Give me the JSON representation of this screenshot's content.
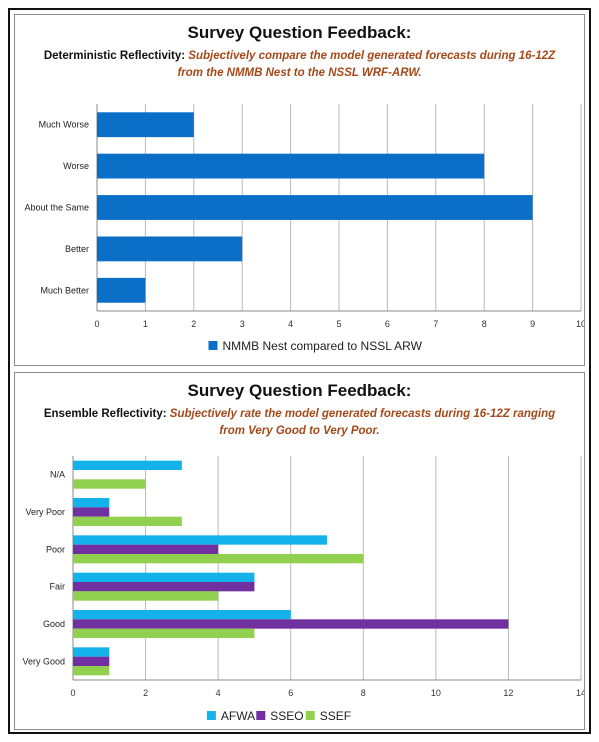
{
  "chart_data": [
    {
      "type": "bar",
      "orientation": "horizontal",
      "title": "Survey Question Feedback:",
      "subtitle_label": "Deterministic Reflectivity:",
      "subtitle_desc_line1": "Subjectively compare the model generated forecasts during 16-12Z",
      "subtitle_desc_line2": "from the NMMB Nest to the NSSL WRF-ARW.",
      "categories": [
        "Much Worse",
        "Worse",
        "About the Same",
        "Better",
        "Much Better"
      ],
      "series": [
        {
          "name": "NMMB Nest compared to NSSL ARW",
          "values": [
            2,
            8,
            9,
            3,
            1
          ],
          "color": "#0b6fc8"
        }
      ],
      "xlim": [
        0,
        10
      ],
      "xticks": [
        0,
        1,
        2,
        3,
        4,
        5,
        6,
        7,
        8,
        9,
        10
      ],
      "grid": true,
      "legend_position": "bottom"
    },
    {
      "type": "bar",
      "orientation": "horizontal",
      "title": "Survey Question Feedback:",
      "subtitle_label": "Ensemble Reflectivity:",
      "subtitle_desc_line1": "Subjectively rate the model generated forecasts during 16-12Z ranging",
      "subtitle_desc_line2": "from Very Good to Very Poor.",
      "categories": [
        "N/A",
        "Very Poor",
        "Poor",
        "Fair",
        "Good",
        "Very Good"
      ],
      "series": [
        {
          "name": "AFWA",
          "values": [
            3,
            1,
            7,
            5,
            6,
            1
          ],
          "color": "#13b2ea"
        },
        {
          "name": "SSEO",
          "values": [
            0,
            1,
            4,
            5,
            12,
            1
          ],
          "color": "#7030a0"
        },
        {
          "name": "SSEF",
          "values": [
            2,
            3,
            8,
            4,
            5,
            1
          ],
          "color": "#92d050"
        }
      ],
      "xlim": [
        0,
        14
      ],
      "xticks": [
        0,
        2,
        4,
        6,
        8,
        10,
        12,
        14
      ],
      "grid": true,
      "legend_position": "bottom"
    }
  ]
}
